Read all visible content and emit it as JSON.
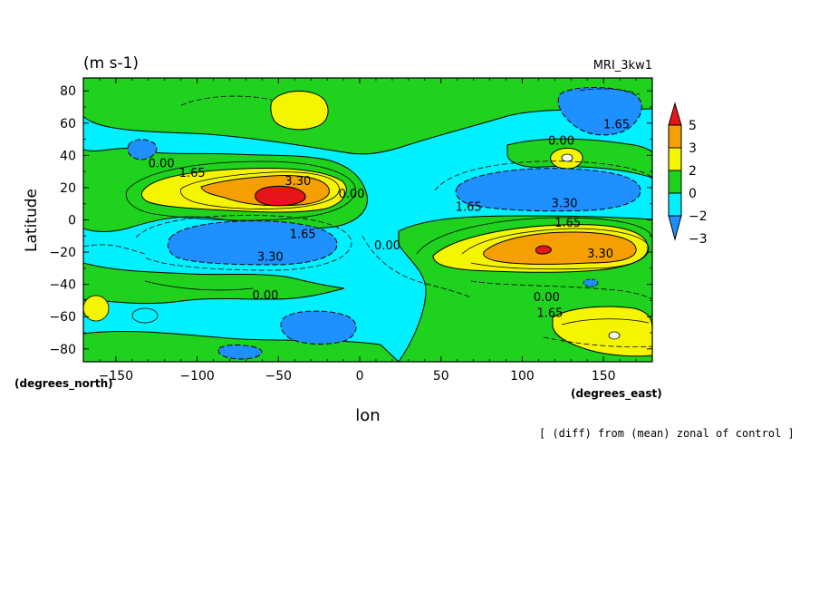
{
  "chart_data": {
    "type": "contour",
    "units_label": "(m s-1)",
    "model_label": "MRI_3kw1",
    "xlabel": "lon",
    "ylabel": "Latitude",
    "x_units": "(degrees_east)",
    "y_units": "(degrees_north)",
    "caption": "[ (diff) from (mean) zonal of control ]",
    "xlim": [
      -170,
      180
    ],
    "ylim": [
      -88,
      88
    ],
    "x_ticks": [
      -150,
      -100,
      -50,
      0,
      50,
      100,
      150
    ],
    "y_ticks": [
      80,
      60,
      40,
      20,
      0,
      -20,
      -40,
      -60,
      -80
    ],
    "colorbar": {
      "labels": [
        "5",
        "3",
        "2",
        "0",
        "−2",
        "−3"
      ],
      "colors": [
        "#e8141c",
        "#f5a000",
        "#f5f500",
        "#1ed21e",
        "#00f0ff",
        "#1e90ff"
      ]
    },
    "contour_labels": [
      {
        "text": "0.00",
        "lon": -122,
        "lat": 35
      },
      {
        "text": "1.65",
        "lon": -103,
        "lat": 29
      },
      {
        "text": "3.30",
        "lon": -38,
        "lat": 24
      },
      {
        "text": "0.00",
        "lon": -5,
        "lat": 16
      },
      {
        "text": "1.65",
        "lon": -35,
        "lat": -9
      },
      {
        "text": "3.30",
        "lon": -55,
        "lat": -23
      },
      {
        "text": "0.00",
        "lon": 17,
        "lat": -16
      },
      {
        "text": "0.00",
        "lon": -58,
        "lat": -47
      },
      {
        "text": "0.00",
        "lon": 124,
        "lat": 49
      },
      {
        "text": "1.65",
        "lon": 158,
        "lat": 59
      },
      {
        "text": "1.65",
        "lon": 67,
        "lat": 8
      },
      {
        "text": "3.30",
        "lon": 126,
        "lat": 10
      },
      {
        "text": "1.65",
        "lon": 128,
        "lat": -2
      },
      {
        "text": "3.30",
        "lon": 148,
        "lat": -21
      },
      {
        "text": "0.00",
        "lon": 115,
        "lat": -48
      },
      {
        "text": "1.65",
        "lon": 117,
        "lat": -58
      }
    ]
  }
}
